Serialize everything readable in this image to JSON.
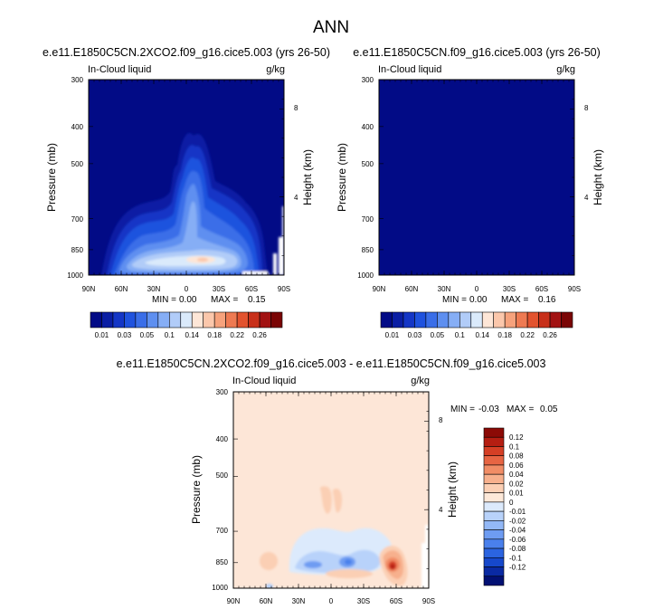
{
  "figure": {
    "title": "ANN",
    "colors": {
      "cloud_scale": [
        "#020b86",
        "#0a1ea4",
        "#1436c6",
        "#1f52de",
        "#3a6ee8",
        "#5e8ff0",
        "#86aef5",
        "#b1ccf8",
        "#daeafb",
        "#fde6d7",
        "#fbc7ab",
        "#f6a27c",
        "#ee7a52",
        "#e2532f",
        "#c8301a",
        "#a21212",
        "#7a0505"
      ],
      "diff_scale": [
        "#021073",
        "#0a2aa3",
        "#1648cb",
        "#2b64e0",
        "#4a80ec",
        "#6e9cf2",
        "#93b8f6",
        "#b8d2fa",
        "#dceafc",
        "#fde8d8",
        "#fbcfb4",
        "#f7b08d",
        "#f18d66",
        "#e76543",
        "#d53f25",
        "#b51e12",
        "#8c0a06"
      ],
      "background_plot": "#020b86",
      "background_diff": "#fde6d7"
    }
  },
  "chart_data": [
    {
      "type": "heatmap",
      "title": "e.e11.E1850C5CN.2XCO2.f09_g16.cice5.003 (yrs 26-50)",
      "left_label": "In-Cloud liquid",
      "units_label": "g/kg",
      "ylabel": "Pressure (mb)",
      "y2label": "Height (km)",
      "xticks": [
        "90N",
        "60N",
        "30N",
        "0",
        "30S",
        "60S",
        "90S"
      ],
      "yticks": [
        "300",
        "400",
        "500",
        "700",
        "850",
        "1000"
      ],
      "y2ticks": [
        "8",
        "4"
      ],
      "xlim": [
        90,
        -90
      ],
      "ylim": [
        1000,
        300
      ],
      "stats_min_label": "MIN =",
      "stats_min_value": "0.00",
      "stats_max_label": "MAX =",
      "stats_max_value": "0.15",
      "colorbar_labels": [
        "0.01",
        "0.03",
        "0.05",
        "0.1",
        "0.14",
        "0.18",
        "0.22",
        "0.26"
      ]
    },
    {
      "type": "heatmap",
      "title": "e.e11.E1850C5CN.f09_g16.cice5.003 (yrs 26-50)",
      "left_label": "In-Cloud liquid",
      "units_label": "g/kg",
      "ylabel": "Pressure (mb)",
      "y2label": "Height (km)",
      "xticks": [
        "90N",
        "60N",
        "30N",
        "0",
        "30S",
        "60S",
        "90S"
      ],
      "yticks": [
        "300",
        "400",
        "500",
        "700",
        "850",
        "1000"
      ],
      "y2ticks": [
        "8",
        "4"
      ],
      "xlim": [
        90,
        -90
      ],
      "ylim": [
        1000,
        300
      ],
      "stats_min_label": "MIN =",
      "stats_min_value": "0.00",
      "stats_max_label": "MAX =",
      "stats_max_value": "0.16",
      "colorbar_labels": [
        "0.01",
        "0.03",
        "0.05",
        "0.1",
        "0.14",
        "0.18",
        "0.22",
        "0.26"
      ]
    },
    {
      "type": "heatmap",
      "title": "e.e11.E1850C5CN.2XCO2.f09_g16.cice5.003 - e.e11.E1850C5CN.f09_g16.cice5.003",
      "left_label": "In-Cloud liquid",
      "units_label": "g/kg",
      "ylabel": "Pressure (mb)",
      "y2label": "Height (km)",
      "xticks": [
        "90N",
        "60N",
        "30N",
        "0",
        "30S",
        "60S",
        "90S"
      ],
      "yticks": [
        "300",
        "400",
        "500",
        "700",
        "850",
        "1000"
      ],
      "y2ticks": [
        "8",
        "4"
      ],
      "xlim": [
        90,
        -90
      ],
      "ylim": [
        1000,
        300
      ],
      "stats_min_label": "MIN =",
      "stats_min_value": "-0.03",
      "stats_max_label": "MAX =",
      "stats_max_value": "0.05",
      "colorbar_labels": [
        "0.12",
        "0.1",
        "0.08",
        "0.06",
        "0.04",
        "0.02",
        "0.01",
        "0",
        "-0.01",
        "-0.02",
        "-0.04",
        "-0.06",
        "-0.08",
        "-0.1",
        "-0.12"
      ]
    }
  ]
}
